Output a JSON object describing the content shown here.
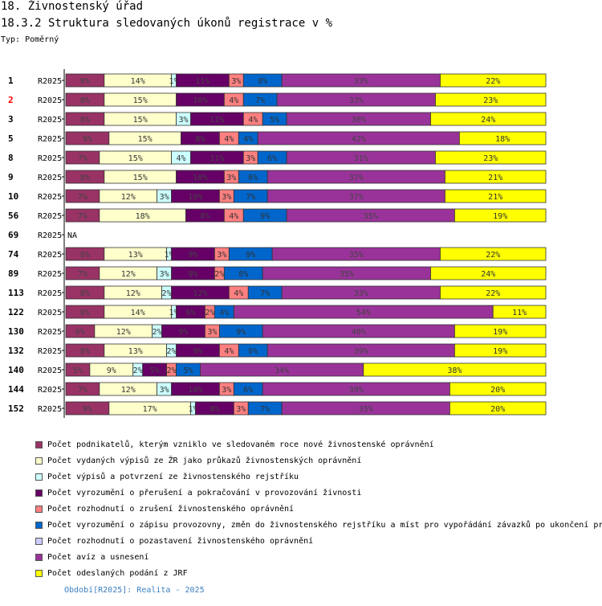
{
  "header": {
    "title": "18. Živnostenský úřad",
    "subtitle": "18.3.2 Struktura sledovaných úkonů registrace v %",
    "type": "Typ: Poměrný"
  },
  "footer": {
    "period": "Období[R2025]: Realita - 2025"
  },
  "chart_data": {
    "type": "bar",
    "orientation": "horizontal",
    "stacked": "percent",
    "period_label": "R2025",
    "legend_placement": "bottom",
    "series": [
      {
        "name": "Počet podnikatelů, kterým vzniklo ve sledovaném roce nové živnostenské oprávnění",
        "color": "#993366"
      },
      {
        "name": "Počet vydaných výpisů ze ŽR jako průkazů živnostenských oprávnění",
        "color": "#ffffcc"
      },
      {
        "name": "Počet výpisů a potvrzení ze živnostenského rejstříku",
        "color": "#ccffff"
      },
      {
        "name": "Počet vyrozumění o přerušení a pokračování v provozování živnosti",
        "color": "#660066"
      },
      {
        "name": "Počet rozhodnutí o zrušení živnostenského oprávnění",
        "color": "#ff8080"
      },
      {
        "name": "Počet vyrozumění o zápisu provozovny, změn do živnostenského rejstříku a míst pro vypořádání závazků po ukončení pr",
        "color": "#0066cc"
      },
      {
        "name": "Počet rozhodnutí o pozastavení živnostenského oprávnění",
        "color": "#ccccff"
      },
      {
        "name": "Počet avíz a usnesení",
        "color": "#993399"
      },
      {
        "name": "Počet odeslaných podání z JRF",
        "color": "#ffff00"
      }
    ],
    "rows": [
      {
        "label": "1",
        "highlight": false,
        "values": [
          8,
          14,
          1,
          11,
          3,
          8,
          0,
          33,
          22
        ],
        "labels": [
          "8%",
          "14%",
          "1%",
          "11%",
          "3%",
          "8%",
          "",
          "33%",
          "22%"
        ]
      },
      {
        "label": "2",
        "highlight": true,
        "values": [
          8,
          15,
          0,
          10,
          4,
          7,
          0,
          33,
          23
        ],
        "labels": [
          "8%",
          "15%",
          "",
          "10%",
          "4%",
          "7%",
          "",
          "33%",
          "23%"
        ]
      },
      {
        "label": "3",
        "highlight": false,
        "values": [
          8,
          15,
          3,
          11,
          4,
          5,
          0,
          30,
          24
        ],
        "labels": [
          "8%",
          "15%",
          "3%",
          "11%",
          "4%",
          "5%",
          "",
          "30%",
          "24%"
        ]
      },
      {
        "label": "5",
        "highlight": false,
        "values": [
          9,
          15,
          0,
          8,
          4,
          4,
          0,
          42,
          18
        ],
        "labels": [
          "9%",
          "15%",
          "",
          "8%",
          "4%",
          "4%",
          "",
          "42%",
          "18%"
        ]
      },
      {
        "label": "8",
        "highlight": false,
        "values": [
          7,
          15,
          4,
          11,
          3,
          6,
          0,
          31,
          23
        ],
        "labels": [
          "7%",
          "15%",
          "4%",
          "11%",
          "3%",
          "6%",
          "",
          "31%",
          "23%"
        ]
      },
      {
        "label": "9",
        "highlight": false,
        "values": [
          8,
          15,
          0,
          10,
          3,
          6,
          0,
          37,
          21
        ],
        "labels": [
          "8%",
          "15%",
          "",
          "10%",
          "3%",
          "6%",
          "",
          "37%",
          "21%"
        ]
      },
      {
        "label": "10",
        "highlight": false,
        "values": [
          7,
          12,
          3,
          10,
          3,
          7,
          0,
          37,
          21
        ],
        "labels": [
          "7%",
          "12%",
          "3%",
          "10%",
          "3%",
          "7%",
          "",
          "37%",
          "21%"
        ]
      },
      {
        "label": "56",
        "highlight": false,
        "values": [
          7,
          18,
          0,
          8,
          4,
          9,
          0,
          35,
          19
        ],
        "labels": [
          "7%",
          "18%",
          "",
          "8%",
          "4%",
          "9%",
          "",
          "35%",
          "19%"
        ]
      },
      {
        "label": "69",
        "highlight": false,
        "values": [],
        "labels": [],
        "na": "NA"
      },
      {
        "label": "74",
        "highlight": false,
        "values": [
          8,
          13,
          1,
          9,
          3,
          9,
          0,
          35,
          22
        ],
        "labels": [
          "8%",
          "13%",
          "1%",
          "9%",
          "3%",
          "9%",
          "",
          "35%",
          "22%"
        ]
      },
      {
        "label": "89",
        "highlight": false,
        "values": [
          7,
          12,
          3,
          9,
          2,
          8,
          0,
          35,
          24
        ],
        "labels": [
          "7%",
          "12%",
          "3%",
          "9%",
          "2%",
          "8%",
          "",
          "35%",
          "24%"
        ]
      },
      {
        "label": "113",
        "highlight": false,
        "values": [
          8,
          12,
          2,
          12,
          4,
          7,
          0,
          33,
          22
        ],
        "labels": [
          "8%",
          "12%",
          "2%",
          "12%",
          "4%",
          "7%",
          "",
          "33%",
          "22%"
        ]
      },
      {
        "label": "122",
        "highlight": false,
        "values": [
          8,
          14,
          1,
          6,
          2,
          4,
          0,
          54,
          11
        ],
        "labels": [
          "8%",
          "14%",
          "1%",
          "6%",
          "2%",
          "4%",
          "",
          "54%",
          "11%"
        ]
      },
      {
        "label": "130",
        "highlight": false,
        "values": [
          6,
          12,
          2,
          9,
          3,
          9,
          0,
          40,
          19
        ],
        "labels": [
          "6%",
          "12%",
          "2%",
          "9%",
          "3%",
          "9%",
          "",
          "40%",
          "19%"
        ]
      },
      {
        "label": "132",
        "highlight": false,
        "values": [
          8,
          13,
          2,
          9,
          4,
          6,
          0,
          39,
          19
        ],
        "labels": [
          "8%",
          "13%",
          "2%",
          "9%",
          "4%",
          "6%",
          "",
          "39%",
          "19%"
        ]
      },
      {
        "label": "140",
        "highlight": false,
        "values": [
          5,
          9,
          2,
          5,
          2,
          5,
          0,
          34,
          38
        ],
        "labels": [
          "5%",
          "9%",
          "2%",
          "5%",
          "2%",
          "5%",
          "",
          "34%",
          "38%"
        ]
      },
      {
        "label": "144",
        "highlight": false,
        "values": [
          7,
          12,
          3,
          10,
          3,
          6,
          0,
          39,
          20
        ],
        "labels": [
          "7%",
          "12%",
          "3%",
          "10%",
          "3%",
          "6%",
          "",
          "39%",
          "20%"
        ]
      },
      {
        "label": "152",
        "highlight": false,
        "values": [
          9,
          17,
          1,
          8,
          3,
          7,
          0,
          35,
          20
        ],
        "labels": [
          "9%",
          "17%",
          "1%",
          "8%",
          "3%",
          "7%",
          "",
          "35%",
          "20%"
        ]
      }
    ]
  }
}
